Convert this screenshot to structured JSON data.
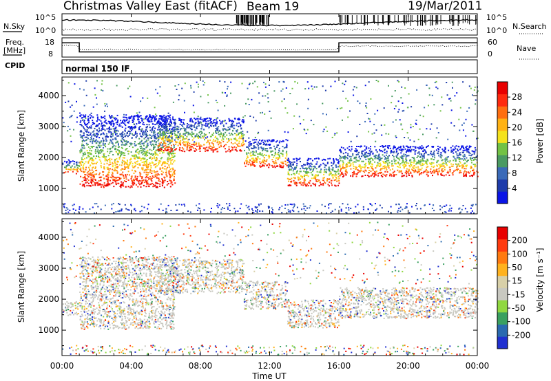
{
  "header": {
    "title": "Christmas Valley East (fitACF)",
    "beam": "Beam 19",
    "date": "19/Mar/2011"
  },
  "top_panels": {
    "nsky_label": "N.Sky",
    "nsearch_label": "N.Search",
    "noise_ticks_left": [
      "10^5",
      "10^0"
    ],
    "noise_ticks_right": [
      "10^5",
      "10^0"
    ],
    "freq_label_1": "Freq.",
    "freq_label_2": "[MHz]",
    "freq_ticks_left": [
      "18",
      "8"
    ],
    "nave_ticks_right": [
      "60",
      "0"
    ],
    "nave_label": "Nave",
    "cpid_label": "CPID",
    "cpid_value": "normal 150 IF"
  },
  "colors": {
    "power_scale": [
      "#0a14e6",
      "#1e3caa",
      "#3a6ab8",
      "#4a9a62",
      "#72c244",
      "#f4e21c",
      "#ffb214",
      "#ff6e10",
      "#ff2a0e",
      "#e80000"
    ],
    "velocity_scale": [
      "#2030d0",
      "#2a6ab0",
      "#3aa060",
      "#90d840",
      "#c8c8c0",
      "#d8d0a8",
      "#ffb21e",
      "#ff7a10",
      "#ff3a0e",
      "#e80000"
    ]
  },
  "chart_data": [
    {
      "type": "heatmap",
      "ylabel": "Slant Range [km]",
      "xlabel": "",
      "ylim": [
        180,
        4600
      ],
      "yticks": [
        "1000",
        "2000",
        "3000",
        "4000"
      ],
      "colorbar": {
        "label": "Power [dB]",
        "ticks": [
          "4",
          "8",
          "12",
          "16",
          "20",
          "24",
          "28"
        ]
      },
      "features": [
        {
          "start_ut": 0.0,
          "end_ut": 1.0,
          "range_km": [
            1500,
            1950
          ]
        },
        {
          "start_ut": 1.0,
          "end_ut": 6.5,
          "range_km": [
            1050,
            3400
          ]
        },
        {
          "start_ut": 5.5,
          "end_ut": 10.5,
          "range_km": [
            2200,
            3300
          ]
        },
        {
          "start_ut": 10.5,
          "end_ut": 13.0,
          "range_km": [
            1700,
            2600
          ]
        },
        {
          "start_ut": 13.0,
          "end_ut": 16.0,
          "range_km": [
            1100,
            2000
          ]
        },
        {
          "start_ut": 16.0,
          "end_ut": 24.0,
          "range_km": [
            1400,
            2400
          ]
        }
      ]
    },
    {
      "type": "heatmap",
      "ylabel": "Slant Range [km]",
      "xlabel": "Time UT",
      "ylim": [
        180,
        4600
      ],
      "yticks": [
        "1000",
        "2000",
        "3000",
        "4000"
      ],
      "xticks": [
        "00:00",
        "04:00",
        "08:00",
        "12:00",
        "16:00",
        "20:00",
        "00:00"
      ],
      "colorbar": {
        "label": "Velocity [m s⁻¹]",
        "ticks": [
          "200",
          "100",
          "50",
          "15",
          "-15",
          "-50",
          "-100",
          "-200"
        ]
      },
      "features": [
        {
          "start_ut": 0.0,
          "end_ut": 1.0,
          "range_km": [
            1500,
            1950
          ]
        },
        {
          "start_ut": 1.0,
          "end_ut": 6.5,
          "range_km": [
            1050,
            3400
          ]
        },
        {
          "start_ut": 5.5,
          "end_ut": 10.5,
          "range_km": [
            2200,
            3300
          ]
        },
        {
          "start_ut": 10.5,
          "end_ut": 13.0,
          "range_km": [
            1700,
            2600
          ]
        },
        {
          "start_ut": 13.0,
          "end_ut": 16.0,
          "range_km": [
            1100,
            2000
          ]
        },
        {
          "start_ut": 16.0,
          "end_ut": 24.0,
          "range_km": [
            1400,
            2400
          ]
        }
      ]
    }
  ]
}
